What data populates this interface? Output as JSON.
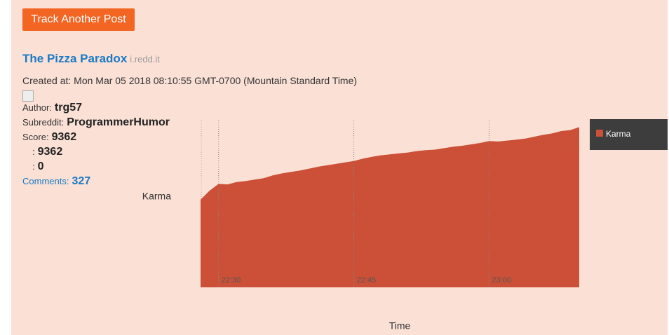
{
  "button": "Track Another Post",
  "post": {
    "title": "The Pizza Paradox",
    "domain": "i.redd.it",
    "created_at": "Created at: Mon Mar 05 2018 08:10:55 GMT-0700 (Mountain Standard Time)",
    "author_label": "Author:",
    "author": "trg57",
    "subreddit_label": "Subreddit:",
    "subreddit": "ProgrammerHumor",
    "score_label": "Score:",
    "score": 9362,
    "upvotes_label": ":",
    "upvotes": 9362,
    "downvotes_label": ":",
    "downvotes": 0,
    "comments_label": "Comments:",
    "comments": 327
  },
  "chart_data": {
    "type": "area",
    "x_label": "Time",
    "y_label": "Karma",
    "x": [
      "22:28",
      "22:29",
      "22:30",
      "22:31",
      "22:32",
      "22:33",
      "22:34",
      "22:35",
      "22:36",
      "22:37",
      "22:38",
      "22:39",
      "22:40",
      "22:41",
      "22:42",
      "22:43",
      "22:44",
      "22:45",
      "22:46",
      "22:47",
      "22:48",
      "22:49",
      "22:50",
      "22:51",
      "22:52",
      "22:53",
      "22:54",
      "22:55",
      "22:56",
      "22:57",
      "22:58",
      "22:59",
      "23:00",
      "23:01",
      "23:02",
      "23:03",
      "23:04",
      "23:05",
      "23:06",
      "23:07",
      "23:08",
      "23:09",
      "23:10"
    ],
    "xlim": [
      "22:28",
      "23:10"
    ],
    "xticks": [
      "22:30",
      "22:45",
      "23:00"
    ],
    "xgrid": true,
    "ylim": [
      6000,
      9500
    ],
    "legend": "right",
    "series": [
      {
        "name": "Karma",
        "color": "#cc5038",
        "values": [
          7840,
          8030,
          8170,
          8160,
          8210,
          8230,
          8260,
          8290,
          8350,
          8390,
          8420,
          8450,
          8490,
          8530,
          8560,
          8590,
          8620,
          8650,
          8700,
          8740,
          8770,
          8790,
          8810,
          8830,
          8860,
          8880,
          8890,
          8920,
          8950,
          8970,
          9000,
          9030,
          9070,
          9060,
          9080,
          9100,
          9120,
          9160,
          9200,
          9230,
          9280,
          9300,
          9362
        ]
      }
    ]
  }
}
